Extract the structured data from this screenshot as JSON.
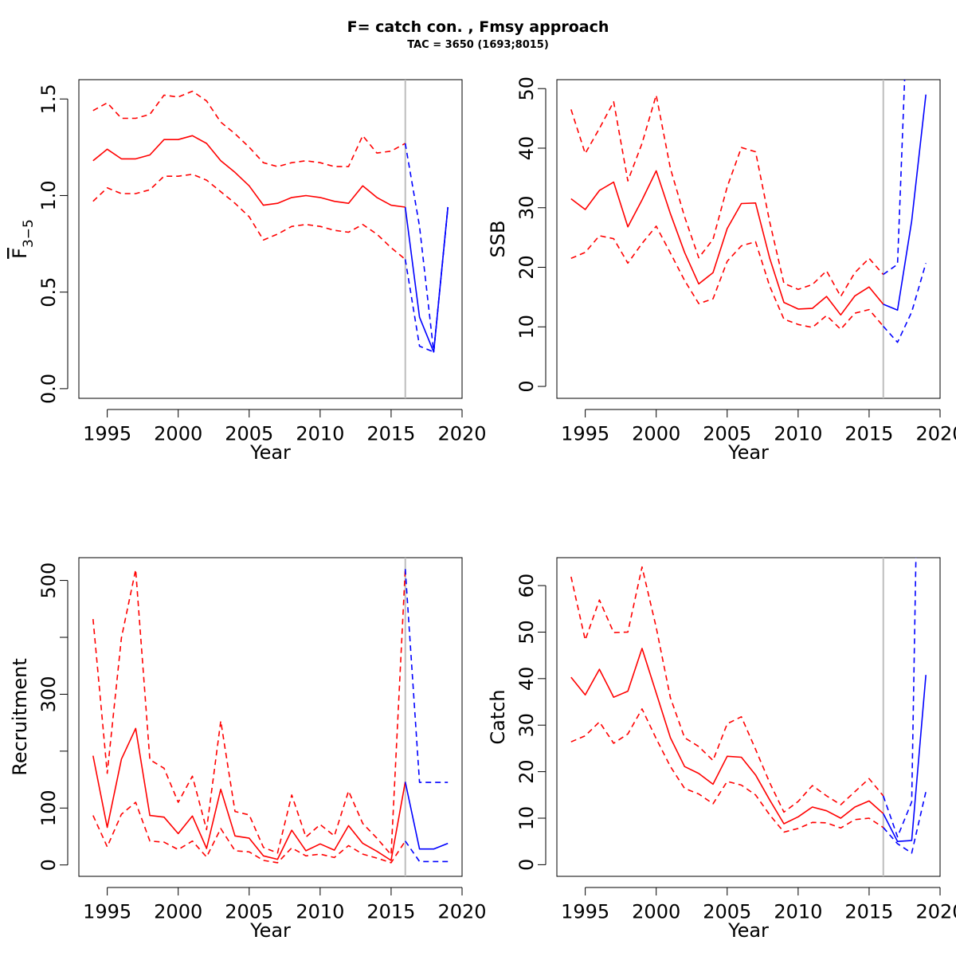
{
  "figure": {
    "title": "F= catch con. , Fmsy approach",
    "subtitle": "TAC = 3650 (1693;8015)"
  },
  "colors": {
    "historical": "#ff0000",
    "projection": "#0000ff",
    "divider": "#bebebe"
  },
  "chart_data": [
    {
      "id": "fbar",
      "type": "line",
      "xlabel": "Year",
      "ylabel_main": "F",
      "ylabel_sub": "3−5",
      "xlim": [
        1993,
        2020
      ],
      "ylim": [
        -0.05,
        1.6
      ],
      "xticks": [
        1995,
        2000,
        2005,
        2010,
        2015,
        2020
      ],
      "yticks": [
        0.0,
        0.5,
        1.0,
        1.5
      ],
      "ytick_labels": [
        "0.0",
        "0.5",
        "1.0",
        "1.5"
      ],
      "vline": 2016,
      "historical": {
        "x": [
          1994,
          1995,
          1996,
          1997,
          1998,
          1999,
          2000,
          2001,
          2002,
          2003,
          2004,
          2005,
          2006,
          2007,
          2008,
          2009,
          2010,
          2011,
          2012,
          2013,
          2014,
          2015,
          2016
        ],
        "median": [
          1.18,
          1.24,
          1.19,
          1.19,
          1.21,
          1.29,
          1.29,
          1.31,
          1.27,
          1.18,
          1.12,
          1.05,
          0.95,
          0.96,
          0.99,
          1.0,
          0.99,
          0.97,
          0.96,
          1.05,
          0.99,
          0.95,
          0.94
        ],
        "upper": [
          1.44,
          1.48,
          1.4,
          1.4,
          1.42,
          1.52,
          1.51,
          1.54,
          1.49,
          1.38,
          1.32,
          1.25,
          1.17,
          1.15,
          1.17,
          1.18,
          1.17,
          1.15,
          1.15,
          1.31,
          1.22,
          1.23,
          1.27
        ],
        "lower": [
          0.97,
          1.04,
          1.01,
          1.01,
          1.03,
          1.1,
          1.1,
          1.11,
          1.08,
          1.02,
          0.96,
          0.89,
          0.77,
          0.8,
          0.84,
          0.85,
          0.84,
          0.82,
          0.81,
          0.85,
          0.8,
          0.73,
          0.67
        ]
      },
      "projection": {
        "median": {
          "x": [
            2016,
            2017,
            2018,
            2019
          ],
          "y": [
            0.94,
            0.37,
            0.19,
            0.94
          ]
        },
        "upper": {
          "x": [
            2016,
            2017,
            2018,
            2019
          ],
          "y": [
            1.27,
            0.84,
            0.19,
            0.94
          ]
        },
        "lower": {
          "x": [
            2016,
            2017,
            2018,
            2019
          ],
          "y": [
            0.67,
            0.22,
            0.19,
            0.94
          ]
        }
      }
    },
    {
      "id": "ssb",
      "type": "line",
      "xlabel": "Year",
      "ylabel": "SSB",
      "xlim": [
        1993,
        2020
      ],
      "ylim": [
        -2,
        51.5
      ],
      "xticks": [
        1995,
        2000,
        2005,
        2010,
        2015,
        2020
      ],
      "yticks": [
        0,
        10,
        20,
        30,
        40,
        50
      ],
      "ytick_labels": [
        "0",
        "10",
        "20",
        "30",
        "40",
        "50"
      ],
      "vline": 2016,
      "historical": {
        "x": [
          1994,
          1995,
          1996,
          1997,
          1998,
          1999,
          2000,
          2001,
          2002,
          2003,
          2004,
          2005,
          2006,
          2007,
          2008,
          2009,
          2010,
          2011,
          2012,
          2013,
          2014,
          2015,
          2016
        ],
        "median": [
          31.5,
          29.7,
          32.9,
          34.3,
          26.8,
          31.3,
          36.2,
          29.0,
          22.5,
          17.2,
          19.1,
          26.5,
          30.7,
          30.8,
          21.5,
          14.1,
          13.0,
          13.1,
          15.1,
          12.0,
          15.2,
          16.7,
          13.8
        ],
        "upper": [
          46.5,
          39.1,
          43.3,
          47.8,
          34.5,
          40.8,
          48.9,
          36.6,
          28.5,
          21.6,
          24.7,
          33.5,
          40.1,
          39.4,
          27.6,
          17.3,
          16.3,
          17.1,
          19.4,
          15.1,
          19.1,
          21.5,
          18.8
        ],
        "lower": [
          21.5,
          22.5,
          25.3,
          24.8,
          20.7,
          24.0,
          26.9,
          22.4,
          17.8,
          13.9,
          14.7,
          21.0,
          23.6,
          24.3,
          16.8,
          11.3,
          10.4,
          9.9,
          11.9,
          9.6,
          12.3,
          12.9,
          10.1
        ]
      },
      "projection": {
        "median": {
          "x": [
            2016,
            2017,
            2018,
            2019
          ],
          "y": [
            13.8,
            12.8,
            27.8,
            49.0
          ]
        },
        "upper": {
          "x": [
            2016,
            2017,
            2017.5
          ],
          "y": [
            18.8,
            20.5,
            51.5
          ]
        },
        "lower": {
          "x": [
            2016,
            2017,
            2018,
            2019
          ],
          "y": [
            10.1,
            7.4,
            12.5,
            20.7
          ]
        }
      }
    },
    {
      "id": "recruitment",
      "type": "line",
      "xlabel": "Year",
      "ylabel": "Recruitment",
      "xlim": [
        1993,
        2020
      ],
      "ylim": [
        -20,
        540
      ],
      "xticks": [
        1995,
        2000,
        2005,
        2010,
        2015,
        2020
      ],
      "yticks": [
        0,
        100,
        200,
        300,
        400,
        500
      ],
      "ytick_labels": [
        "0",
        "100",
        "",
        "300",
        "",
        "500"
      ],
      "vline": 2016,
      "historical": {
        "x": [
          1994,
          1995,
          1996,
          1997,
          1998,
          1999,
          2000,
          2001,
          2002,
          2003,
          2004,
          2005,
          2006,
          2007,
          2008,
          2009,
          2010,
          2011,
          2012,
          2013,
          2014,
          2015,
          2016
        ],
        "median": [
          192,
          66,
          186,
          240,
          87,
          84,
          55,
          86,
          29,
          133,
          51,
          47,
          16,
          10,
          61,
          25,
          37,
          26,
          69,
          38,
          24,
          8,
          146
        ],
        "upper": [
          432,
          161,
          399,
          519,
          185,
          170,
          110,
          156,
          62,
          253,
          94,
          88,
          31,
          21,
          123,
          49,
          71,
          51,
          130,
          73,
          47,
          18,
          520
        ],
        "lower": [
          87,
          32,
          89,
          110,
          42,
          40,
          27,
          42,
          14,
          64,
          25,
          23,
          8,
          4,
          30,
          16,
          19,
          13,
          34,
          19,
          12,
          4,
          42
        ]
      },
      "projection": {
        "median": {
          "x": [
            2016,
            2017,
            2018,
            2019
          ],
          "y": [
            146,
            28,
            28,
            38
          ]
        },
        "upper": {
          "x": [
            2016,
            2017,
            2018,
            2019
          ],
          "y": [
            520,
            145,
            145,
            145
          ]
        },
        "lower": {
          "x": [
            2016,
            2017,
            2018,
            2019
          ],
          "y": [
            42,
            6,
            6,
            6
          ]
        }
      }
    },
    {
      "id": "catch",
      "type": "line",
      "xlabel": "Year",
      "ylabel": "Catch",
      "xlim": [
        1993,
        2020
      ],
      "ylim": [
        -2.5,
        66
      ],
      "xticks": [
        1995,
        2000,
        2005,
        2010,
        2015,
        2020
      ],
      "yticks": [
        0,
        10,
        20,
        30,
        40,
        50,
        60
      ],
      "ytick_labels": [
        "0",
        "10",
        "20",
        "30",
        "40",
        "50",
        "60"
      ],
      "vline": 2016,
      "historical": {
        "x": [
          1994,
          1995,
          1996,
          1997,
          1998,
          1999,
          2000,
          2001,
          2002,
          2003,
          2004,
          2005,
          2006,
          2007,
          2008,
          2009,
          2010,
          2011,
          2012,
          2013,
          2014,
          2015,
          2016
        ],
        "median": [
          40.3,
          36.5,
          42.0,
          36.0,
          37.3,
          46.5,
          36.9,
          27.3,
          21.1,
          19.6,
          17.3,
          23.3,
          23.1,
          19.3,
          13.9,
          8.8,
          10.3,
          12.4,
          11.6,
          10.0,
          12.4,
          13.7,
          11.0
        ],
        "upper": [
          61.9,
          48.3,
          56.9,
          49.9,
          50.0,
          64.0,
          51.0,
          35.9,
          27.3,
          25.4,
          22.4,
          30.3,
          31.8,
          24.8,
          17.6,
          11.3,
          13.6,
          17.0,
          14.8,
          12.9,
          15.7,
          18.5,
          14.8
        ],
        "lower": [
          26.4,
          27.7,
          30.7,
          26.1,
          28.1,
          33.5,
          27.1,
          21.1,
          16.4,
          15.2,
          13.1,
          17.9,
          17.1,
          15.0,
          10.7,
          7.0,
          7.8,
          9.1,
          9.0,
          7.9,
          9.7,
          10.0,
          8.0
        ]
      },
      "projection": {
        "median": {
          "x": [
            2016,
            2017,
            2018,
            2019
          ],
          "y": [
            11.0,
            5.0,
            5.2,
            40.8
          ]
        },
        "upper": {
          "x": [
            2016,
            2017,
            2018,
            2018.3
          ],
          "y": [
            14.8,
            6.0,
            13.5,
            66.0
          ]
        },
        "lower": {
          "x": [
            2016,
            2017,
            2018,
            2019
          ],
          "y": [
            8.0,
            4.5,
            2.5,
            15.7
          ]
        }
      }
    }
  ]
}
